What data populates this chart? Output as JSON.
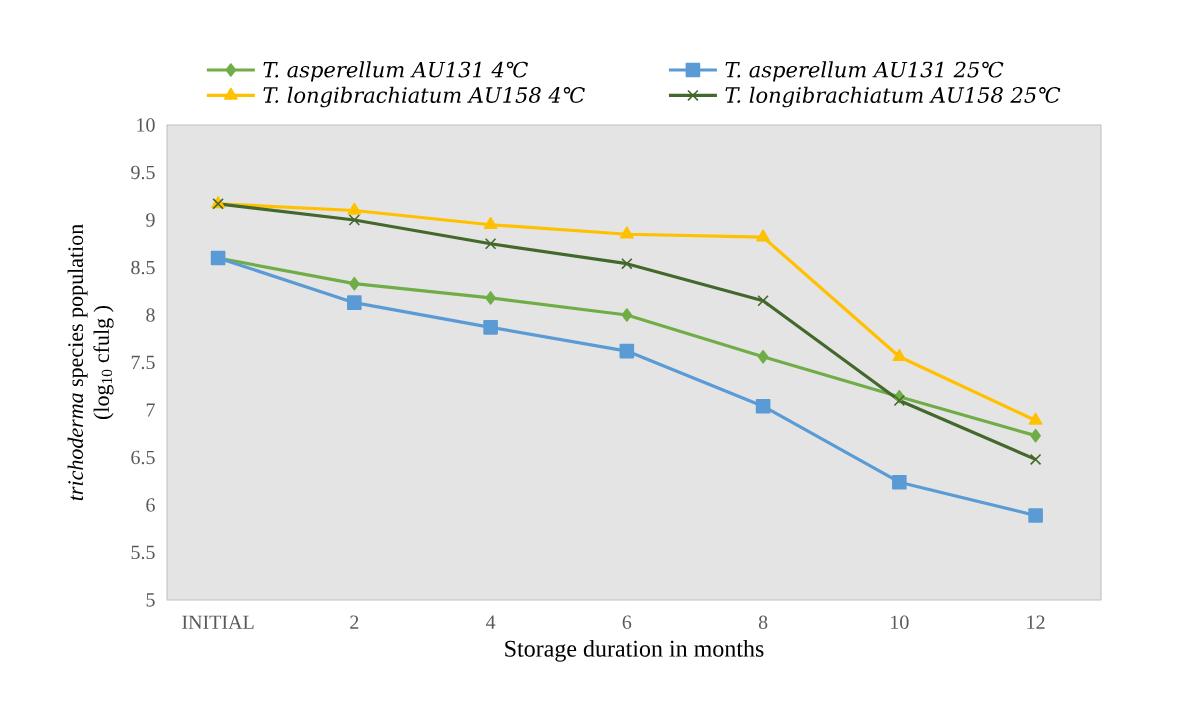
{
  "chart_data": {
    "type": "line",
    "xlabel": "Storage duration in months",
    "ylabel": "*trichoderma*  species population (log$_{10}$ cfulg )",
    "categories": [
      "INITIAL",
      "2",
      "4",
      "6",
      "8",
      "10",
      "12"
    ],
    "series": [
      {
        "name": "T. asperellum AU131 4℃",
        "color": "#70ad47",
        "marker": "diamond",
        "values": [
          8.6,
          8.33,
          8.18,
          8.0,
          7.56,
          7.14,
          6.73
        ]
      },
      {
        "name": "T. asperellum AU131 25℃",
        "color": "#5b9bd5",
        "marker": "square",
        "values": [
          8.6,
          8.13,
          7.87,
          7.62,
          7.04,
          6.24,
          5.89
        ]
      },
      {
        "name": "T. longibrachiatum AU158 4℃",
        "color": "#ffc000",
        "marker": "triangle",
        "values": [
          9.17,
          9.1,
          8.95,
          8.85,
          8.82,
          7.56,
          6.89
        ]
      },
      {
        "name": "T. longibrachiatum AU158 25℃",
        "color": "#43682b",
        "marker": "cross",
        "values": [
          9.17,
          9.0,
          8.75,
          8.54,
          8.15,
          7.1,
          6.48
        ]
      }
    ],
    "ylim": [
      5,
      10
    ],
    "yticks": [
      5,
      5.5,
      6,
      6.5,
      7,
      7.5,
      8,
      8.5,
      9,
      9.5,
      10
    ],
    "grid": false,
    "legend": "top",
    "line_style": "solid"
  }
}
